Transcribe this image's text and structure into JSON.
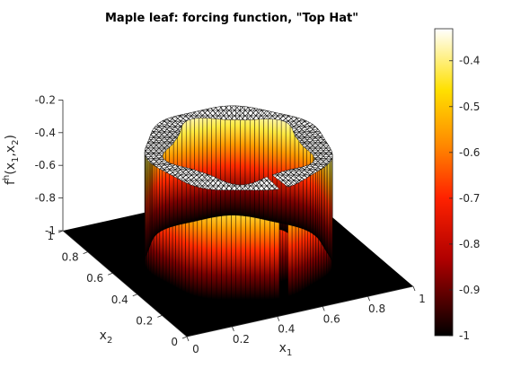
{
  "chart_data": {
    "type": "surface3d",
    "title": "Maple leaf: forcing function, \"Top Hat\"",
    "xlabel": "x1",
    "ylabel": "x2",
    "zlabel": "f^h(x1,x2)",
    "xlim": [
      0,
      1
    ],
    "ylim": [
      0,
      1
    ],
    "zlim": [
      -1,
      -0.2
    ],
    "x_ticks": [
      "0",
      "0.2",
      "0.4",
      "0.6",
      "0.8",
      "1"
    ],
    "y_ticks": [
      "0",
      "0.2",
      "0.4",
      "0.6",
      "0.8",
      "1"
    ],
    "z_ticks": [
      "-1",
      "-0.8",
      "-0.6",
      "-0.4",
      "-0.2"
    ],
    "colorbar": {
      "colormap": "hot",
      "range": [
        -1,
        -0.33
      ],
      "ticks": [
        "-1",
        "-0.9",
        "-0.8",
        "-0.7",
        "-0.6",
        "-0.5",
        "-0.4"
      ]
    },
    "surface": {
      "baseline_value": -1,
      "plateau_value": -0.33,
      "plateau_region": "maple leaf shaped annulus centred at (0.5, 0.5)",
      "outer_radius": 0.36,
      "inner_radius": 0.25,
      "slit_angle_deg": -90
    }
  }
}
